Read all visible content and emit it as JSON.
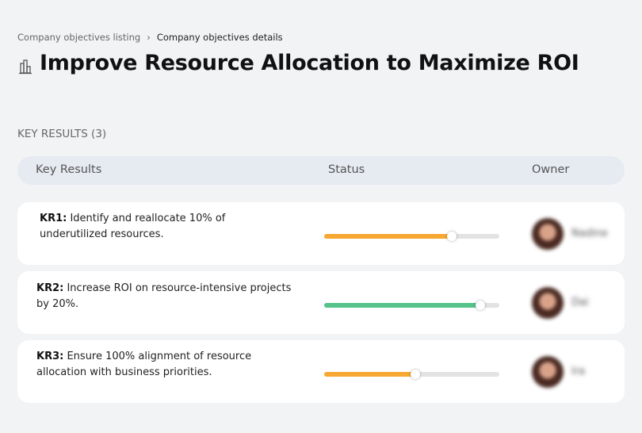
{
  "breadcrumb": {
    "items": [
      "Company objectives listing",
      "Company objectives details"
    ]
  },
  "header": {
    "title": "Improve Resource Allocation to Maximize ROI"
  },
  "section": {
    "title": "KEY RESULTS (3)"
  },
  "table": {
    "columns": [
      "Key Results",
      "Status",
      "Owner"
    ],
    "rows": [
      {
        "id": "KR1:",
        "text": "Identify and reallocate 10% of underutilized resources.",
        "progress": 73,
        "color": "#f6a832",
        "owner": "Nadine"
      },
      {
        "id": "KR2:",
        "text": "Increase ROI on resource-intensive projects by 20%.",
        "progress": 89,
        "color": "#55c38a",
        "owner": "Dai"
      },
      {
        "id": "KR3:",
        "text": "Ensure 100% alignment of resource allocation with business priorities.",
        "progress": 52,
        "color": "#f6a832",
        "owner": "Ira"
      }
    ]
  }
}
